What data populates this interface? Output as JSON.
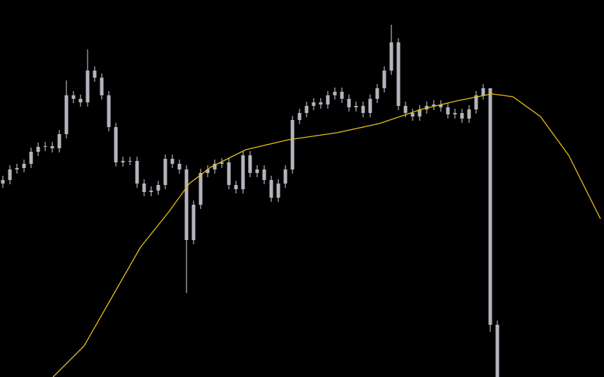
{
  "chart_data": {
    "type": "candlestick",
    "candle_color": "#b4b4be",
    "open": [
      274,
      279,
      294,
      296,
      302,
      319,
      326,
      327,
      324,
      344,
      399,
      394,
      389,
      434,
      424,
      399,
      354,
      304,
      306,
      306,
      274,
      262,
      264,
      272,
      309,
      302,
      294,
      194,
      244,
      289,
      294,
      302,
      304,
      272,
      266,
      314,
      289,
      294,
      279,
      254,
      274,
      294,
      364,
      374,
      384,
      389,
      386,
      399,
      404,
      394,
      382,
      384,
      374,
      394,
      409,
      434,
      474,
      384,
      374,
      369,
      379,
      384,
      386,
      382,
      372,
      374,
      366,
      379,
      399,
      409,
      74
    ],
    "high": [
      285,
      300,
      302,
      308,
      325,
      332,
      333,
      333,
      350,
      420,
      405,
      400,
      464,
      440,
      430,
      405,
      360,
      312,
      312,
      312,
      280,
      270,
      278,
      315,
      315,
      308,
      300,
      250,
      295,
      300,
      308,
      310,
      310,
      278,
      320,
      320,
      300,
      300,
      285,
      280,
      300,
      370,
      380,
      390,
      395,
      395,
      405,
      410,
      410,
      400,
      390,
      390,
      400,
      415,
      440,
      499,
      480,
      390,
      380,
      385,
      390,
      392,
      392,
      388,
      380,
      380,
      385,
      405,
      415,
      404,
      80
    ],
    "low": [
      268,
      273,
      288,
      290,
      296,
      313,
      320,
      318,
      318,
      338,
      388,
      383,
      383,
      418,
      393,
      348,
      298,
      298,
      300,
      268,
      256,
      256,
      258,
      266,
      296,
      288,
      119,
      188,
      238,
      283,
      288,
      296,
      266,
      260,
      260,
      283,
      283,
      273,
      248,
      248,
      268,
      288,
      358,
      368,
      378,
      380,
      380,
      393,
      388,
      376,
      376,
      368,
      368,
      388,
      403,
      428,
      378,
      368,
      363,
      363,
      373,
      378,
      376,
      366,
      366,
      360,
      360,
      373,
      393,
      64,
      0
    ],
    "close": [
      279,
      294,
      296,
      302,
      319,
      326,
      327,
      324,
      344,
      399,
      394,
      389,
      434,
      424,
      399,
      354,
      304,
      306,
      306,
      274,
      262,
      264,
      272,
      309,
      302,
      294,
      194,
      244,
      289,
      294,
      302,
      304,
      272,
      266,
      314,
      289,
      294,
      279,
      254,
      274,
      294,
      364,
      374,
      384,
      389,
      386,
      399,
      404,
      394,
      382,
      384,
      374,
      394,
      409,
      434,
      474,
      384,
      374,
      369,
      379,
      384,
      386,
      382,
      372,
      374,
      366,
      379,
      399,
      409,
      74,
      0
    ],
    "line": {
      "color": "#e8c21a",
      "x": [
        7.1,
        11.5,
        15.5,
        19.5,
        23.5,
        26.4,
        29.4,
        34.4,
        40.4,
        47.3,
        53.3,
        59.2,
        64.2,
        69.2,
        72.2,
        76.1,
        80.1,
        84.6
      ],
      "values": [
        0,
        44,
        114,
        184,
        234,
        274,
        297,
        322,
        336,
        346,
        359,
        379,
        391,
        401,
        397,
        369,
        314,
        224
      ]
    },
    "xlim": [
      -0.4,
      85.1
    ],
    "ylim": [
      0,
      534
    ]
  }
}
